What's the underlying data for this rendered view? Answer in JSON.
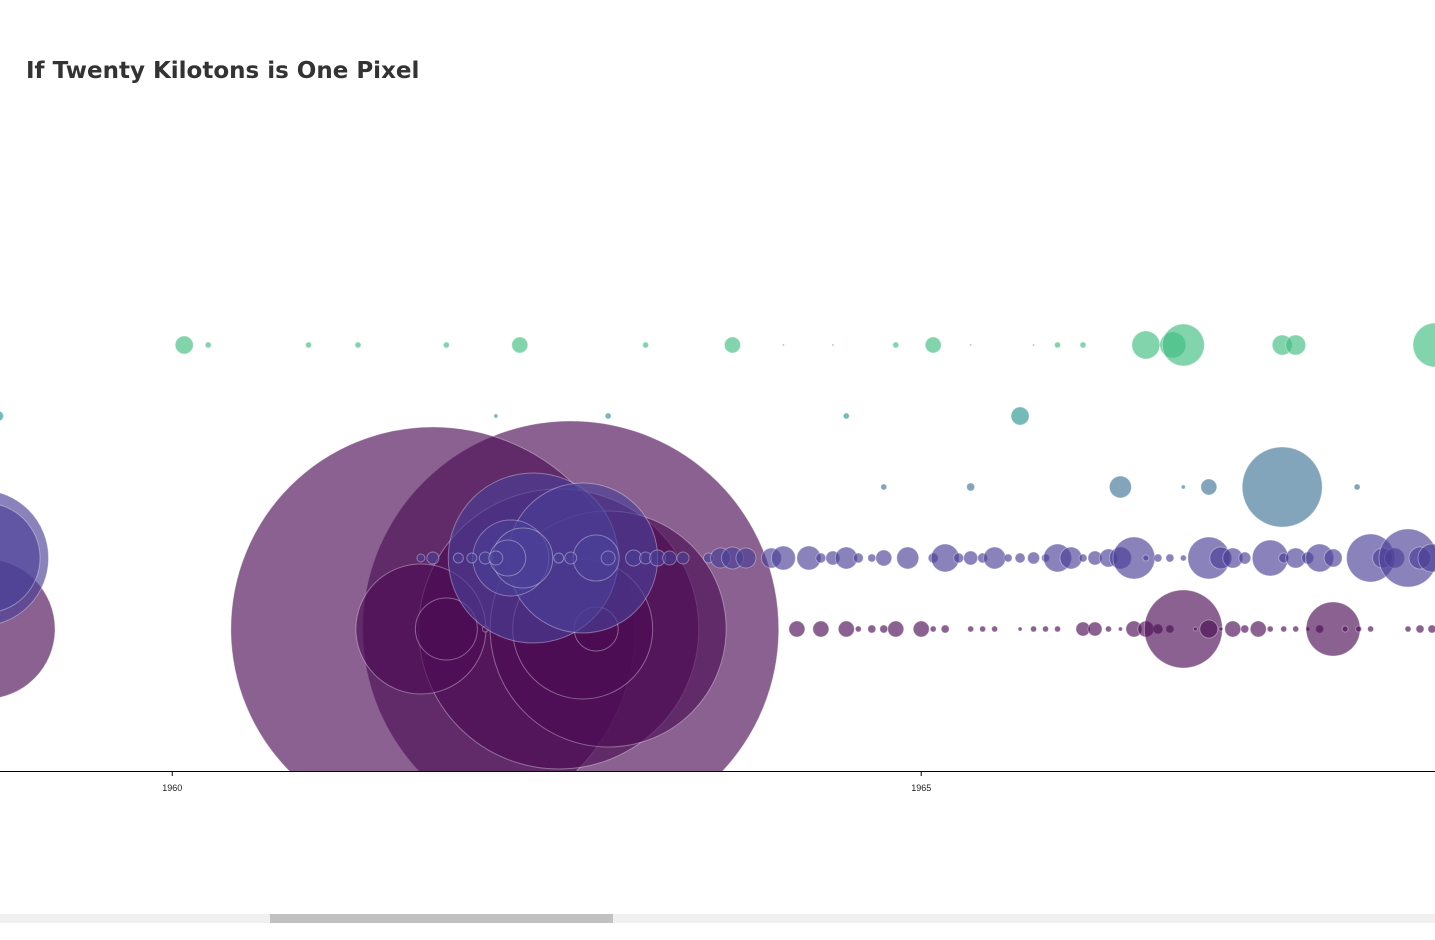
{
  "chart_data": {
    "type": "bubble",
    "title": "If Twenty Kilotons is One Pixel",
    "xlim": [
      1958.85,
      1968.43
    ],
    "xticks": [
      1960,
      1965
    ],
    "series": [
      {
        "color": "#3fbd80",
        "x": [
          1960.08,
          1960.24,
          1960.91,
          1961.24,
          1961.83,
          1962.32,
          1963.16,
          1963.74,
          1964.08,
          1964.41,
          1964.83,
          1965.08,
          1965.33,
          1965.75,
          1965.91,
          1966.08,
          1966.5,
          1966.68,
          1966.75,
          1967.41,
          1967.5,
          1968.43
        ],
        "sizes": [
          180,
          60,
          60,
          60,
          60,
          160,
          60,
          160,
          20,
          20,
          60,
          160,
          20,
          20,
          60,
          60,
          280,
          260,
          420,
          200,
          200,
          440
        ]
      },
      {
        "color": "#2a9590",
        "x": [
          1958.84,
          1962.16,
          1962.91,
          1964.5,
          1965.66
        ],
        "sizes": [
          100,
          40,
          60,
          60,
          180
        ]
      },
      {
        "color": "#3f7598",
        "x": [
          1964.75,
          1965.33,
          1966.33,
          1966.75,
          1966.92,
          1967.41,
          1967.91
        ],
        "sizes": [
          60,
          80,
          220,
          40,
          160,
          800,
          60
        ]
      },
      {
        "color": "#4a3f96",
        "x": [
          1958.72,
          1958.75,
          1962.41,
          1962.74,
          1962.26,
          1962.34,
          1962.83,
          1962.24,
          1961.66,
          1961.74,
          1961.91,
          1962.0,
          1962.09,
          1962.16,
          1962.58,
          1962.66,
          1962.91,
          1963.08,
          1963.16,
          1963.24,
          1963.32,
          1963.41,
          1963.58,
          1963.66,
          1963.74,
          1963.83,
          1964.0,
          1964.08,
          1964.25,
          1964.33,
          1964.41,
          1964.5,
          1964.58,
          1964.67,
          1964.75,
          1964.91,
          1965.08,
          1965.16,
          1965.25,
          1965.33,
          1965.41,
          1965.49,
          1965.58,
          1965.66,
          1965.75,
          1965.83,
          1965.91,
          1966.0,
          1966.08,
          1966.16,
          1966.25,
          1966.33,
          1966.42,
          1966.5,
          1966.58,
          1966.66,
          1966.75,
          1966.92,
          1967.0,
          1967.08,
          1967.16,
          1967.33,
          1967.42,
          1967.5,
          1967.58,
          1967.66,
          1967.75,
          1968.0,
          1968.08,
          1968.16,
          1968.25,
          1968.33,
          1968.41
        ],
        "sizes": [
          1360,
          1100,
          1700,
          1500,
          760,
          600,
          460,
          360,
          80,
          120,
          100,
          100,
          120,
          140,
          100,
          120,
          140,
          160,
          120,
          160,
          140,
          120,
          100,
          200,
          220,
          200,
          200,
          240,
          240,
          100,
          140,
          220,
          100,
          80,
          160,
          220,
          100,
          280,
          100,
          140,
          100,
          220,
          80,
          100,
          120,
          80,
          280,
          220,
          80,
          140,
          180,
          220,
          420,
          60,
          80,
          80,
          60,
          420,
          220,
          200,
          120,
          360,
          100,
          200,
          120,
          280,
          180,
          480,
          200,
          200,
          580,
          220,
          280
        ]
      },
      {
        "color": "#4b0c55",
        "x": [
          1958.75,
          1962.66,
          1961.74,
          1962.58,
          1962.91,
          1962.74,
          1961.66,
          1961.83,
          1962.83,
          1962.09,
          1964.17,
          1964.33,
          1964.5,
          1964.58,
          1964.67,
          1964.75,
          1964.83,
          1965.0,
          1965.08,
          1965.16,
          1965.33,
          1965.41,
          1965.49,
          1965.66,
          1965.75,
          1965.83,
          1965.91,
          1966.08,
          1966.16,
          1966.25,
          1966.33,
          1966.42,
          1966.5,
          1966.58,
          1966.66,
          1966.75,
          1966.83,
          1966.92,
          1967.0,
          1967.08,
          1967.16,
          1967.25,
          1967.33,
          1967.42,
          1967.5,
          1967.58,
          1967.66,
          1967.75,
          1967.83,
          1967.92,
          1968.0,
          1968.25,
          1968.33,
          1968.41
        ],
        "sizes": [
          1400,
          4160,
          4040,
          2800,
          2360,
          1400,
          1300,
          620,
          440,
          60,
          160,
          160,
          160,
          60,
          80,
          80,
          160,
          160,
          60,
          80,
          60,
          60,
          60,
          40,
          60,
          60,
          60,
          140,
          140,
          60,
          40,
          160,
          160,
          100,
          80,
          780,
          40,
          180,
          40,
          160,
          80,
          160,
          60,
          60,
          60,
          40,
          80,
          540,
          60,
          60,
          60,
          60,
          80,
          80
        ]
      }
    ]
  }
}
